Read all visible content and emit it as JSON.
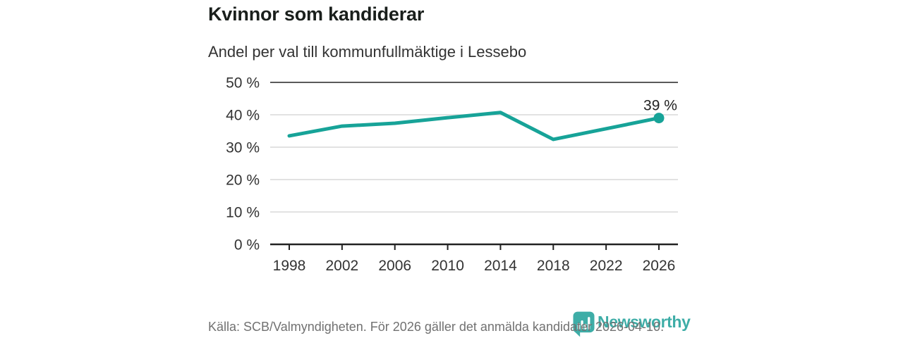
{
  "header": {
    "title": "Kvinnor som kandiderar",
    "subtitle": "Andel per val till kommunfullmäktige i Lessebo"
  },
  "chart_data": {
    "type": "line",
    "title": "Kvinnor som kandiderar",
    "subtitle": "Andel per val till kommunfullmäktige i Lessebo",
    "categories": [
      1998,
      2002,
      2006,
      2010,
      2014,
      2018,
      2022,
      2026
    ],
    "values": [
      33.5,
      36.5,
      37.4,
      39.1,
      40.7,
      32.4,
      35.7,
      39
    ],
    "end_point_label": "39 %",
    "ylim": [
      0,
      50
    ],
    "ytick_step": 10,
    "ytick_labels": [
      "0 %",
      "10 %",
      "20 %",
      "30 %",
      "40 %",
      "50 %"
    ],
    "grid": true,
    "legend": "none",
    "xlabel": "",
    "ylabel": ""
  },
  "footer": {
    "source": "Källa: SCB/Valmyndigheten. För 2026 gäller det anmälda kandidater 2026-04-10."
  },
  "branding": {
    "logo_text": "Newsworthy",
    "logo_icon": "newsworthy-bubble-barchart-icon"
  },
  "colors": {
    "accent": "#17a398",
    "grid": "#d9d9d9",
    "top_rule": "#5a5a5a",
    "axis": "#222222",
    "tick_text": "#333333",
    "annotation_text": "#222222",
    "muted_text": "#717171",
    "logo_teal": "#2ea7a0"
  }
}
